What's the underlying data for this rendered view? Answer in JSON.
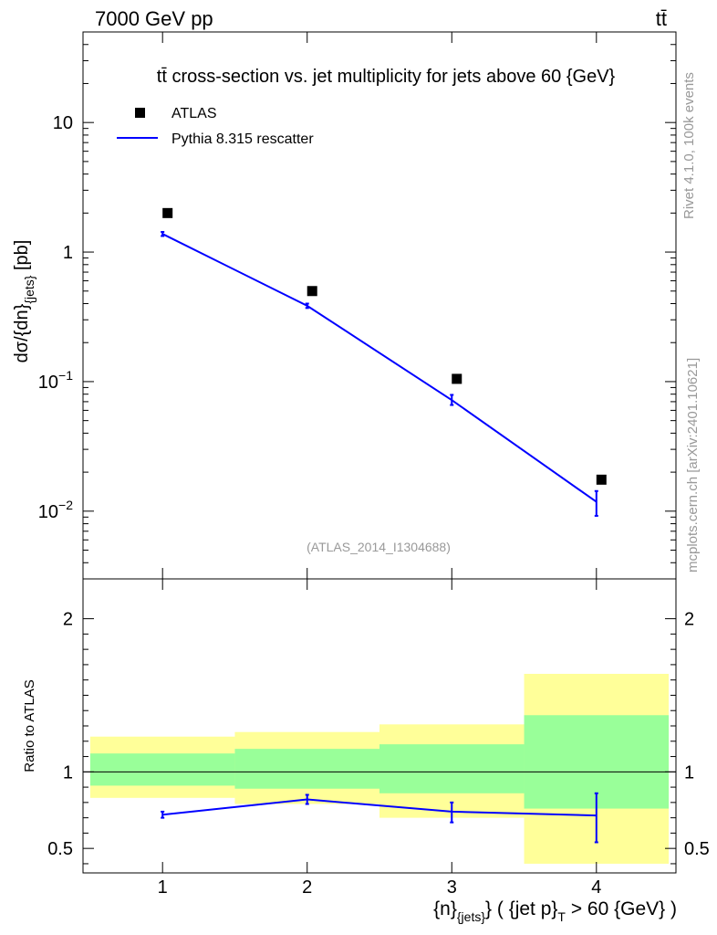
{
  "header": {
    "left": "7000 GeV pp",
    "right": "tt̄"
  },
  "side_labels": {
    "rivet": "Rivet 4.1.0,  100k events",
    "mcplots": "mcplots.cern.ch [arXiv:2401.10621]"
  },
  "colors": {
    "data_marker": "#000000",
    "mc_line": "#0000ff",
    "band_inner": "#99ff99",
    "band_outer": "#ffff99",
    "analysis_id": "#999999"
  },
  "chart_data": [
    {
      "type": "scatter",
      "panel": "main",
      "title": "tt̄ cross-section vs. jet multiplicity for jets above 60 {GeV}",
      "ylabel": "dσ/{dn}{jets} [pb]",
      "ylabel_main": "dσ/{dn}",
      "ylabel_sub": "{jets}",
      "ylabel_tail": " [pb]",
      "yscale": "log",
      "ylim": [
        0.003,
        50
      ],
      "xlim": [
        0.45,
        4.55
      ],
      "xticks": [
        1,
        2,
        3,
        4
      ],
      "yticks": [
        {
          "value": 0.01,
          "base": "10",
          "exp": "−2"
        },
        {
          "value": 0.1,
          "base": "10",
          "exp": "−1"
        },
        {
          "value": 1,
          "label": "1"
        },
        {
          "value": 10,
          "label": "10"
        }
      ],
      "analysis_id": "(ATLAS_2014_I1304688)",
      "legend": [
        {
          "label": "ATLAS",
          "kind": "marker"
        },
        {
          "label": "Pythia 8.315 rescatter",
          "kind": "line"
        }
      ],
      "series": [
        {
          "name": "ATLAS",
          "x": [
            1,
            2,
            3,
            4
          ],
          "values": [
            2.0,
            0.5,
            0.105,
            0.0175
          ]
        },
        {
          "name": "Pythia 8.315 rescatter",
          "x": [
            1,
            2,
            3,
            4
          ],
          "values": [
            1.38,
            0.385,
            0.072,
            0.0118
          ],
          "err_low": [
            1.33,
            0.37,
            0.066,
            0.0092
          ],
          "err_high": [
            1.43,
            0.4,
            0.079,
            0.0143
          ]
        }
      ]
    },
    {
      "type": "line",
      "panel": "ratio",
      "ylabel": "Ratio to ATLAS",
      "ylim": [
        0.34,
        2.26
      ],
      "xlim": [
        0.45,
        4.55
      ],
      "xticks": [
        1,
        2,
        3,
        4
      ],
      "yticks": [
        0.5,
        1,
        2
      ],
      "xlabel": "{n}{jets} ( {jet p}T > 60 {GeV} )",
      "xlabel_parts": {
        "a": "{n}",
        "a_sub": "{jets}",
        "b": "} ( {jet p}",
        "b_sub": "T",
        "c": " > 60 {GeV} )"
      },
      "bins": [
        [
          0.5,
          1.5
        ],
        [
          1.5,
          2.5
        ],
        [
          2.5,
          3.5
        ],
        [
          3.5,
          4.5
        ]
      ],
      "band_outer": [
        [
          0.83,
          1.23
        ],
        [
          0.79,
          1.26
        ],
        [
          0.7,
          1.31
        ],
        [
          0.4,
          1.64
        ]
      ],
      "band_inner": [
        [
          0.91,
          1.12
        ],
        [
          0.89,
          1.15
        ],
        [
          0.86,
          1.18
        ],
        [
          0.76,
          1.37
        ]
      ],
      "series": [
        {
          "name": "Pythia 8.315 rescatter",
          "x": [
            1,
            2,
            3,
            4
          ],
          "values": [
            0.72,
            0.82,
            0.74,
            0.715
          ],
          "err_low": [
            0.7,
            0.79,
            0.67,
            0.54
          ],
          "err_high": [
            0.74,
            0.85,
            0.8,
            0.86
          ]
        }
      ]
    }
  ]
}
